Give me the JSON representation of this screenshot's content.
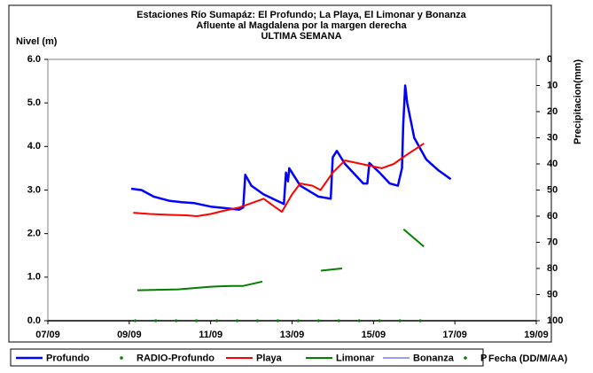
{
  "chart_data": {
    "type": "line",
    "title": "Estaciones Río Sumapáz: El Profundo; La Playa, El Limonar y Bonanza",
    "subtitle": [
      "Afluente al Magdalena por la margen derecha",
      "ULTIMA SEMANA"
    ],
    "ylabel": "Nivel (m)",
    "y2label": "Precipitacion(mm)",
    "xlabel": "Fecha (DD/M/AA)",
    "xlim": [
      7,
      19
    ],
    "xticks": [
      {
        "value": 7,
        "label": "07/09"
      },
      {
        "value": 9,
        "label": "09/09"
      },
      {
        "value": 11,
        "label": "11/09"
      },
      {
        "value": 13,
        "label": "13/09"
      },
      {
        "value": 15,
        "label": "15/09"
      },
      {
        "value": 17,
        "label": "17/09"
      },
      {
        "value": 19,
        "label": "19/09"
      }
    ],
    "ylim": [
      0,
      6
    ],
    "yticks": [
      {
        "value": 0,
        "label": "0.0"
      },
      {
        "value": 1,
        "label": "1.0"
      },
      {
        "value": 2,
        "label": "2.0"
      },
      {
        "value": 3,
        "label": "3.0"
      },
      {
        "value": 4,
        "label": "4.0"
      },
      {
        "value": 5,
        "label": "5.0"
      },
      {
        "value": 6,
        "label": "6.0"
      }
    ],
    "y2lim": [
      100,
      0
    ],
    "y2ticks": [
      0,
      10,
      20,
      30,
      40,
      50,
      60,
      70,
      80,
      90,
      100
    ],
    "series": [
      {
        "name": "Profundo",
        "color": "#0000ff",
        "style": "line",
        "width": 2.5,
        "x": [
          9.05,
          9.3,
          9.6,
          10.0,
          10.3,
          10.6,
          11.0,
          11.5,
          11.7,
          11.8,
          11.85,
          12.0,
          12.3,
          12.8,
          12.85,
          12.9,
          12.93,
          13.2,
          13.65,
          13.95,
          14.0,
          14.1,
          14.3,
          14.75,
          14.85,
          14.9,
          15.15,
          15.4,
          15.6,
          15.7,
          15.73,
          15.78,
          15.83,
          16.0,
          16.3,
          16.6,
          16.9
        ],
        "values": [
          3.03,
          3.0,
          2.85,
          2.75,
          2.72,
          2.7,
          2.62,
          2.57,
          2.55,
          2.6,
          3.35,
          3.1,
          2.9,
          2.68,
          3.4,
          3.2,
          3.5,
          3.1,
          2.85,
          2.8,
          3.75,
          3.9,
          3.6,
          3.15,
          3.15,
          3.62,
          3.4,
          3.15,
          3.1,
          3.5,
          4.5,
          5.4,
          5.0,
          4.2,
          3.7,
          3.45,
          3.25
        ]
      },
      {
        "name": "RADIO-Profundo",
        "color": "#008000",
        "style": "dots",
        "x": [
          9.15,
          9.65,
          10.15,
          10.65,
          11.15,
          11.65,
          12.15,
          12.65,
          13.15,
          13.65,
          14.15,
          14.65,
          15.15,
          15.65,
          16.15
        ],
        "values": [
          0,
          0,
          0,
          0,
          0,
          0,
          0,
          0,
          0,
          0,
          0,
          0,
          0,
          0,
          0
        ]
      },
      {
        "name": "Playa",
        "color": "#ff0000",
        "style": "line",
        "width": 2,
        "x": [
          9.1,
          9.5,
          10.0,
          10.4,
          10.66,
          11.0,
          11.3,
          11.7,
          12.0,
          12.3,
          12.6,
          12.75,
          13.0,
          13.2,
          13.5,
          13.7,
          14.0,
          14.3,
          14.7,
          15.2,
          15.5,
          15.8,
          16.24
        ],
        "values": [
          2.48,
          2.45,
          2.43,
          2.42,
          2.4,
          2.45,
          2.52,
          2.6,
          2.7,
          2.8,
          2.6,
          2.5,
          2.9,
          3.15,
          3.1,
          3.0,
          3.4,
          3.68,
          3.6,
          3.5,
          3.6,
          3.8,
          4.07
        ]
      },
      {
        "name": "Limonar",
        "color": "#008000",
        "style": "line",
        "width": 2,
        "x": [
          9.2,
          10.2,
          11.0,
          11.5,
          11.8,
          12.27,
          null,
          13.71,
          14.23,
          null,
          15.74,
          16.24
        ],
        "values": [
          0.7,
          0.72,
          0.78,
          0.8,
          0.8,
          0.9,
          null,
          1.15,
          1.2,
          null,
          2.1,
          1.7
        ]
      },
      {
        "name": "Bonanza",
        "color": "#3333ff",
        "style": "line",
        "width": 1,
        "x": [],
        "values": []
      },
      {
        "name": "P",
        "color": "#008000",
        "style": "dots",
        "axis": "y2",
        "x": [],
        "values": []
      }
    ]
  }
}
